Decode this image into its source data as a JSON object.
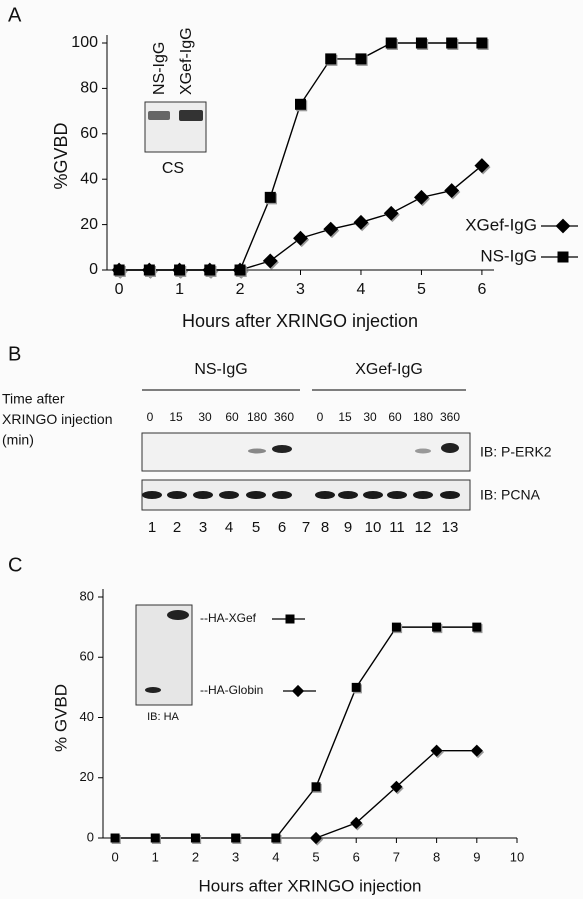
{
  "chart_data": [
    {
      "type": "line",
      "panel_label": "A",
      "ylabel": "%GVBD",
      "xlabel": "Hours after XRINGO injection",
      "x": [
        0,
        0.5,
        1,
        1.5,
        2,
        2.5,
        3,
        3.5,
        4,
        4.5,
        5,
        5.5,
        6
      ],
      "xlim": [
        -0.2,
        6.2
      ],
      "xticks": [
        0,
        1,
        2,
        3,
        4,
        5,
        6
      ],
      "ylim": [
        0,
        100
      ],
      "yticks": [
        0,
        20,
        40,
        60,
        80,
        100
      ],
      "legend": "lower right",
      "series": [
        {
          "name": "XGef-IgG",
          "marker": "diamond",
          "color": "#000000",
          "values": [
            0,
            0,
            0,
            0,
            0,
            4,
            14,
            18,
            21,
            25,
            32,
            35,
            46
          ]
        },
        {
          "name": "NS-IgG",
          "marker": "square",
          "color": "#000000",
          "values": [
            0,
            0,
            0,
            0,
            0,
            32,
            73,
            93,
            93,
            100,
            100,
            100,
            100
          ]
        }
      ],
      "inset": {
        "lanes": [
          "NS-IgG",
          "XGef-IgG"
        ],
        "label": "CS"
      }
    },
    {
      "type": "line",
      "panel_label": "C",
      "ylabel": "% GVBD",
      "xlabel": "Hours after XRINGO injection",
      "x": [
        0,
        1,
        2,
        3,
        4,
        5,
        6,
        7,
        8,
        9
      ],
      "xlim": [
        -0.3,
        10
      ],
      "xticks": [
        0,
        1,
        2,
        3,
        4,
        5,
        6,
        7,
        8,
        9,
        10
      ],
      "ylim": [
        0,
        80
      ],
      "yticks": [
        0,
        20,
        40,
        60,
        80
      ],
      "legend": "upper left",
      "series": [
        {
          "name": "--HA-XGef",
          "marker": "square",
          "color": "#000000",
          "values": [
            0,
            0,
            0,
            0,
            0,
            17,
            50,
            70,
            70,
            70
          ]
        },
        {
          "name": "--HA-Globin",
          "marker": "diamond",
          "color": "#000000",
          "values": [
            null,
            null,
            null,
            null,
            null,
            0,
            5,
            17,
            29,
            29
          ]
        }
      ],
      "inset": {
        "label": "IB: HA"
      }
    }
  ],
  "panel_b": {
    "label": "B",
    "groups": [
      "NS-IgG",
      "XGef-IgG"
    ],
    "time_label": [
      "Time after",
      "XRINGO injection",
      "(min)"
    ],
    "times": [
      [
        0,
        15,
        30,
        60,
        180,
        360
      ],
      [
        0,
        15,
        30,
        60,
        180,
        360
      ]
    ],
    "blots": [
      "IB: P-ERK2",
      "IB: PCNA"
    ],
    "lanes": [
      1,
      2,
      3,
      4,
      5,
      6,
      7,
      8,
      9,
      10,
      11,
      12,
      13
    ]
  }
}
